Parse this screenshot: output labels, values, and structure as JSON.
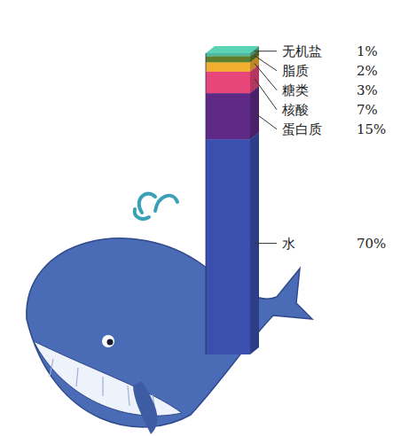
{
  "chart_data": {
    "type": "bar",
    "stacked": true,
    "data_labels": true,
    "tick_labels": false,
    "ylim": [
      0,
      98
    ],
    "series": [
      {
        "name": "水",
        "color": "#3a4fae",
        "values": [
          70
        ],
        "value_labels": [
          "70%"
        ]
      },
      {
        "name": "蛋白质",
        "color": "#5e2a86",
        "values": [
          15
        ],
        "value_labels": [
          "15%"
        ]
      },
      {
        "name": "核酸",
        "color": "#e8457a",
        "values": [
          7
        ],
        "value_labels": [
          "7%"
        ]
      },
      {
        "name": "糖类",
        "color": "#f2ae2e",
        "values": [
          3
        ],
        "value_labels": [
          "3%"
        ]
      },
      {
        "name": "脂质",
        "color": "#5f7f2e",
        "values": [
          2
        ],
        "value_labels": [
          "2%"
        ]
      },
      {
        "name": "无机盐",
        "color": "#4fb89e",
        "values": [
          1
        ],
        "value_labels": [
          "1%"
        ]
      }
    ]
  }
}
